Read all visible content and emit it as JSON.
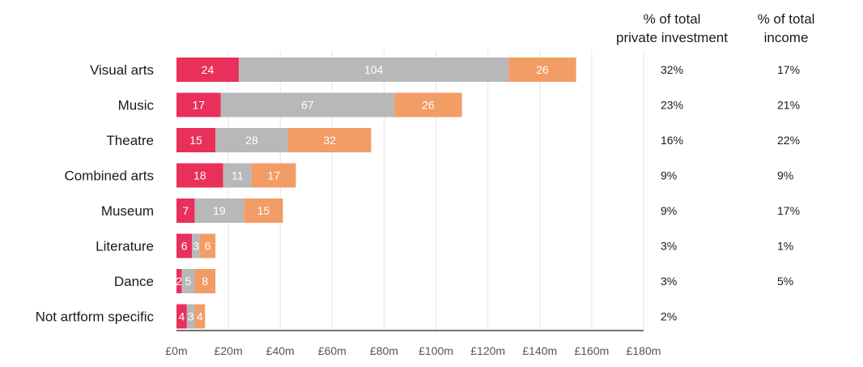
{
  "chart_data": {
    "type": "bar",
    "orientation": "horizontal",
    "stacked": true,
    "title": "",
    "xlabel": "",
    "ylabel": "",
    "xlim": [
      0,
      180
    ],
    "x_ticks": [
      0,
      20,
      40,
      60,
      80,
      100,
      120,
      140,
      160,
      180
    ],
    "x_tick_labels": [
      "£0m",
      "£20m",
      "£40m",
      "£60m",
      "£80m",
      "£100m",
      "£120m",
      "£140m",
      "£160m",
      "£180m"
    ],
    "grid": true,
    "categories": [
      "Visual arts",
      "Music",
      "Theatre",
      "Combined arts",
      "Museum",
      "Literature",
      "Dance",
      "Not artform specific"
    ],
    "series": [
      {
        "name": "series-1",
        "color": "#e8305a",
        "values": [
          24,
          17,
          15,
          18,
          7,
          6,
          2,
          4
        ]
      },
      {
        "name": "series-2",
        "color": "#b8b8b8",
        "values": [
          104,
          67,
          28,
          11,
          19,
          3,
          5,
          3
        ]
      },
      {
        "name": "series-3",
        "color": "#f29c66",
        "values": [
          26,
          26,
          32,
          17,
          15,
          6,
          8,
          4
        ]
      }
    ],
    "columns": {
      "private_investment": {
        "header_line1": "% of total",
        "header_line2": "private investment",
        "values": [
          "32%",
          "23%",
          "16%",
          "9%",
          "9%",
          "3%",
          "3%",
          "2%"
        ]
      },
      "income": {
        "header_line1": "% of total",
        "header_line2": "income",
        "values": [
          "17%",
          "21%",
          "22%",
          "9%",
          "17%",
          "1%",
          "5%",
          ""
        ]
      }
    }
  }
}
